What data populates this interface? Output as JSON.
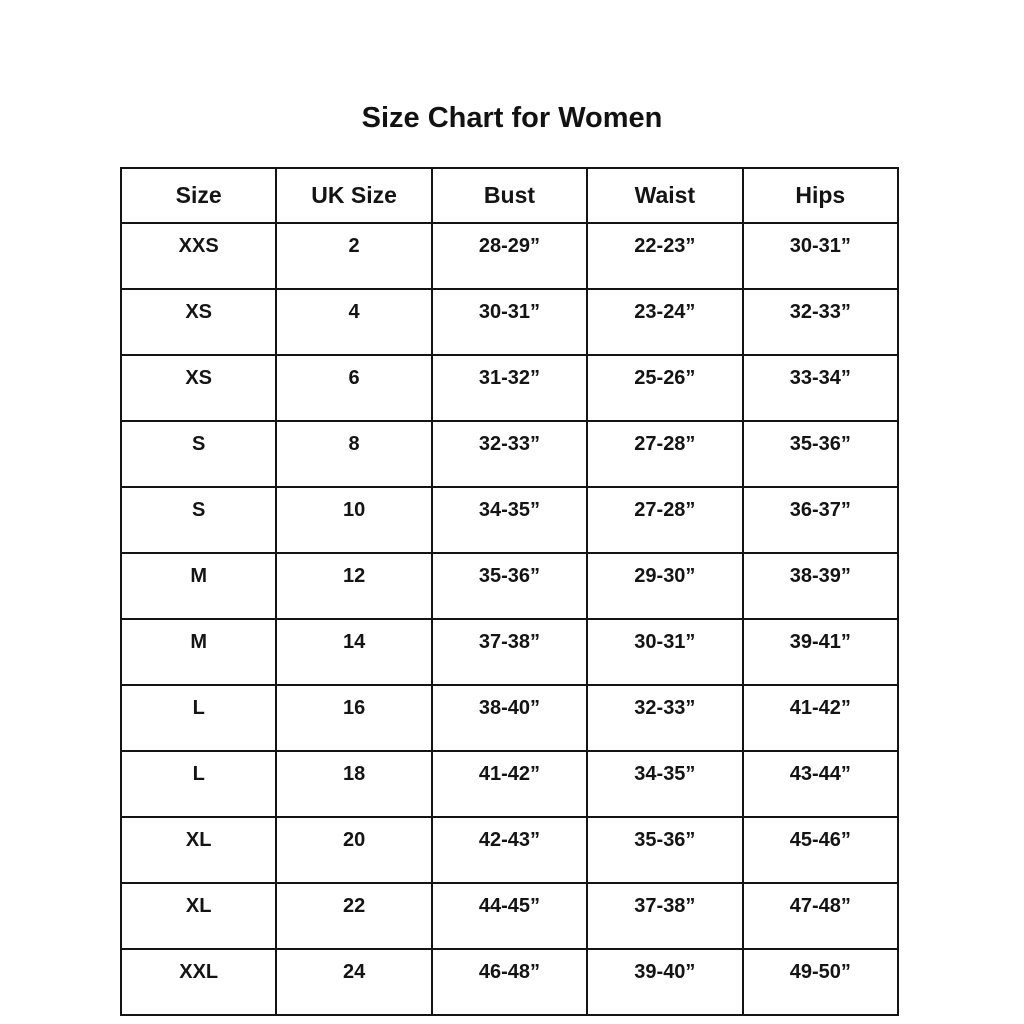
{
  "page": {
    "title": "Size Chart for Women"
  },
  "colors": {
    "background": "#ffffff",
    "text": "#141414",
    "border": "#141414"
  },
  "chart_data": {
    "type": "table",
    "title": "Size Chart for Women",
    "columns": [
      "Size",
      "UK Size",
      "Bust",
      "Waist",
      "Hips"
    ],
    "rows": [
      [
        "XXS",
        "2",
        "28-29”",
        "22-23”",
        "30-31”"
      ],
      [
        "XS",
        "4",
        "30-31”",
        "23-24”",
        "32-33”"
      ],
      [
        "XS",
        "6",
        "31-32”",
        "25-26”",
        "33-34”"
      ],
      [
        "S",
        "8",
        "32-33”",
        "27-28”",
        "35-36”"
      ],
      [
        "S",
        "10",
        "34-35”",
        "27-28”",
        "36-37”"
      ],
      [
        "M",
        "12",
        "35-36”",
        "29-30”",
        "38-39”"
      ],
      [
        "M",
        "14",
        "37-38”",
        "30-31”",
        "39-41”"
      ],
      [
        "L",
        "16",
        "38-40”",
        "32-33”",
        "41-42”"
      ],
      [
        "L",
        "18",
        "41-42”",
        "34-35”",
        "43-44”"
      ],
      [
        "XL",
        "20",
        "42-43”",
        "35-36”",
        "45-46”"
      ],
      [
        "XL",
        "22",
        "44-45”",
        "37-38”",
        "47-48”"
      ],
      [
        "XXL",
        "24",
        "46-48”",
        "39-40”",
        "49-50”"
      ]
    ],
    "layout": {
      "grid": true,
      "header_row": true,
      "equal_column_widths": true
    }
  }
}
